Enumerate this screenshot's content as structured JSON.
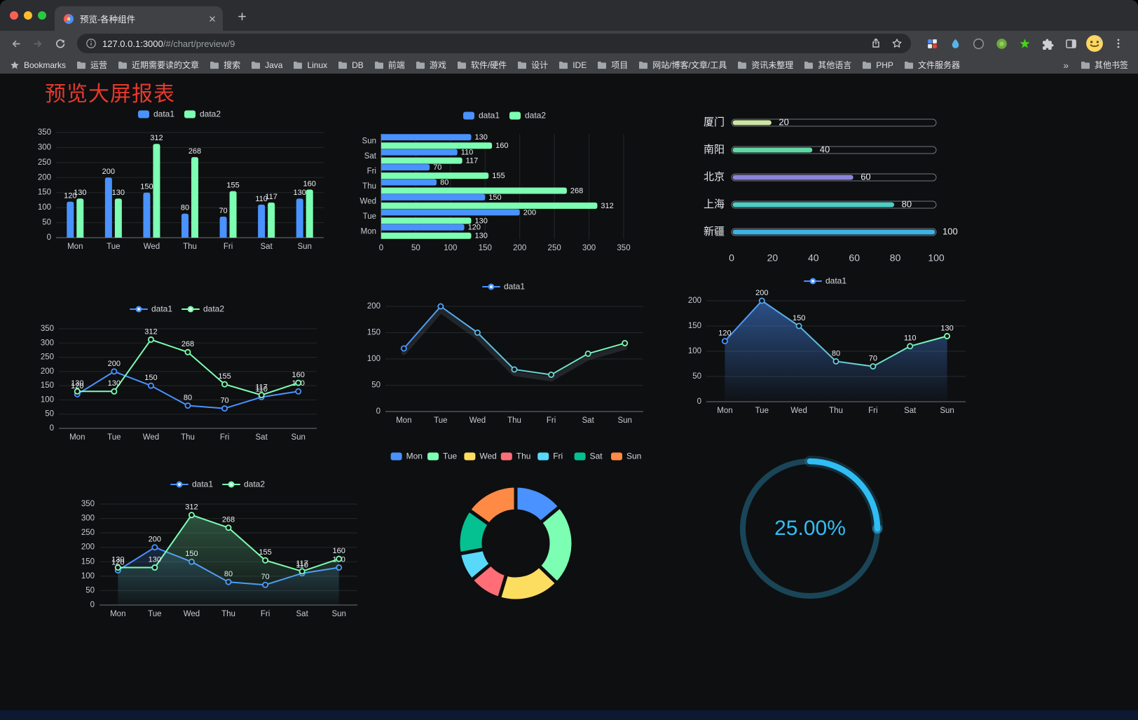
{
  "browser": {
    "tab_title": "预览-各种组件",
    "url_host": "127.0.0.1:3000",
    "url_path": "/#/chart/preview/9",
    "bookmarks_bar": {
      "bookmarks_label": "Bookmarks",
      "folders": [
        "运营",
        "近期需要读的文章",
        "搜索",
        "Java",
        "Linux",
        "DB",
        "前端",
        "游戏",
        "软件/硬件",
        "设计",
        "IDE",
        "项目",
        "网站/博客/文章/工具",
        "资讯未整理",
        "其他语言",
        "PHP",
        "文件服务器"
      ],
      "overflow": "»",
      "other_bookmarks": "其他书签"
    }
  },
  "page": {
    "title": "预览大屏报表",
    "title_color": "#e6392c"
  },
  "chart_data": [
    {
      "id": "bar-grouped-vertical",
      "type": "bar",
      "orientation": "vertical",
      "categories": [
        "Mon",
        "Tue",
        "Wed",
        "Thu",
        "Fri",
        "Sat",
        "Sun"
      ],
      "series": [
        {
          "name": "data1",
          "color": "#4992ff",
          "values": [
            120,
            200,
            150,
            80,
            70,
            110,
            130
          ]
        },
        {
          "name": "data2",
          "color": "#7cffb2",
          "values": [
            130,
            130,
            312,
            268,
            155,
            117,
            160
          ]
        }
      ],
      "ylim": [
        0,
        350
      ],
      "yticks": [
        0,
        50,
        100,
        150,
        200,
        250,
        300,
        350
      ],
      "value_labels": true,
      "legend_position": "top"
    },
    {
      "id": "bar-grouped-horizontal",
      "type": "bar",
      "orientation": "horizontal",
      "categories": [
        "Mon",
        "Tue",
        "Wed",
        "Thu",
        "Fri",
        "Sat",
        "Sun"
      ],
      "series": [
        {
          "name": "data1",
          "color": "#4992ff",
          "values": [
            120,
            200,
            150,
            80,
            70,
            110,
            130
          ]
        },
        {
          "name": "data2",
          "color": "#7cffb2",
          "values": [
            130,
            130,
            312,
            268,
            155,
            117,
            160
          ]
        }
      ],
      "xlim": [
        0,
        350
      ],
      "xticks": [
        0,
        50,
        100,
        150,
        200,
        250,
        300,
        350
      ],
      "value_labels": true,
      "legend_position": "top"
    },
    {
      "id": "capsule-progress",
      "type": "bar",
      "subtype": "capsule",
      "categories": [
        "厦门",
        "南阳",
        "北京",
        "上海",
        "新疆"
      ],
      "values": [
        20,
        40,
        60,
        80,
        100
      ],
      "colors": [
        "#cde6a3",
        "#5fd9a4",
        "#8b85da",
        "#4fcdc5",
        "#3fb1e3"
      ],
      "xlim": [
        0,
        100
      ],
      "xticks": [
        0,
        20,
        40,
        60,
        80,
        100
      ],
      "value_labels": true
    },
    {
      "id": "line-two-series",
      "type": "line",
      "categories": [
        "Mon",
        "Tue",
        "Wed",
        "Thu",
        "Fri",
        "Sat",
        "Sun"
      ],
      "series": [
        {
          "name": "data1",
          "color": "#4992ff",
          "values": [
            120,
            200,
            150,
            80,
            70,
            110,
            130
          ]
        },
        {
          "name": "data2",
          "color": "#7cffb2",
          "values": [
            130,
            130,
            312,
            268,
            155,
            117,
            160
          ]
        }
      ],
      "ylim": [
        0,
        350
      ],
      "yticks": [
        0,
        50,
        100,
        150,
        200,
        250,
        300,
        350
      ],
      "value_labels": true,
      "legend_position": "top"
    },
    {
      "id": "line-gradient",
      "type": "line",
      "categories": [
        "Mon",
        "Tue",
        "Wed",
        "Thu",
        "Fri",
        "Sat",
        "Sun"
      ],
      "series": [
        {
          "name": "data1",
          "gradient": [
            "#4992ff",
            "#7cffb2"
          ],
          "shadow": true,
          "values": [
            120,
            200,
            150,
            80,
            70,
            110,
            130
          ]
        }
      ],
      "ylim": [
        0,
        200
      ],
      "yticks": [
        0,
        50,
        100,
        150,
        200
      ],
      "value_labels": false,
      "legend_position": "top"
    },
    {
      "id": "line-area",
      "type": "line",
      "categories": [
        "Mon",
        "Tue",
        "Wed",
        "Thu",
        "Fri",
        "Sat",
        "Sun"
      ],
      "series": [
        {
          "name": "data1",
          "gradient": [
            "#4992ff",
            "#7cffb2"
          ],
          "area": true,
          "area_opacity": 0.5,
          "values": [
            120,
            200,
            150,
            80,
            70,
            110,
            130
          ]
        }
      ],
      "ylim": [
        0,
        200
      ],
      "yticks": [
        0,
        50,
        100,
        150,
        200
      ],
      "value_labels": true,
      "legend_position": "top"
    },
    {
      "id": "line-two-series-area",
      "type": "line",
      "categories": [
        "Mon",
        "Tue",
        "Wed",
        "Thu",
        "Fri",
        "Sat",
        "Sun"
      ],
      "series": [
        {
          "name": "data1",
          "color": "#4992ff",
          "area": true,
          "area_opacity": 0.2,
          "values": [
            120,
            200,
            150,
            80,
            70,
            110,
            130
          ]
        },
        {
          "name": "data2",
          "color": "#7cffb2",
          "area": true,
          "area_opacity": 0.28,
          "values": [
            130,
            130,
            312,
            268,
            155,
            117,
            160
          ]
        }
      ],
      "ylim": [
        0,
        350
      ],
      "yticks": [
        0,
        50,
        100,
        150,
        200,
        250,
        300,
        350
      ],
      "value_labels": true,
      "legend_position": "top"
    },
    {
      "id": "donut",
      "type": "pie",
      "categories": [
        "Mon",
        "Tue",
        "Wed",
        "Thu",
        "Fri",
        "Sat",
        "Sun"
      ],
      "values": [
        120,
        200,
        150,
        80,
        70,
        110,
        130
      ],
      "colors": [
        "#4992ff",
        "#7cffb2",
        "#fddd60",
        "#ff6e76",
        "#58d9f9",
        "#05c091",
        "#ff8a45"
      ],
      "inner_radius_ratio": 0.56,
      "legend_position": "top"
    },
    {
      "id": "gauge",
      "type": "gauge",
      "value": 25,
      "label": "25.00%",
      "color": "#2fbdf3",
      "track_color": "#1a4557"
    }
  ]
}
